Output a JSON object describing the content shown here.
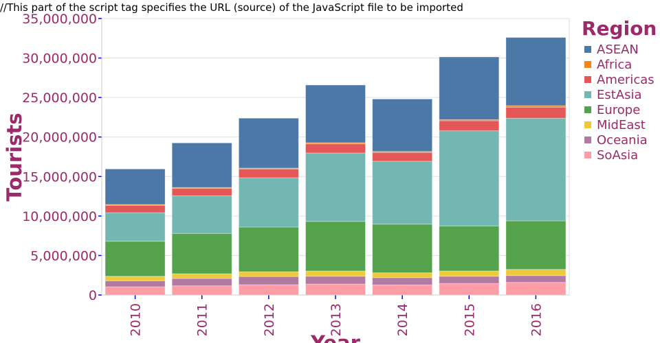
{
  "note": "//This part of the script tag specifies the URL (source) of the JavaScript file to be imported",
  "chart_data": {
    "type": "bar",
    "stacked": true,
    "title": "",
    "xlabel": "Year",
    "ylabel": "Tourists",
    "ylim": [
      0,
      35000000
    ],
    "yticks": [
      0,
      5000000,
      10000000,
      15000000,
      20000000,
      25000000,
      30000000,
      35000000
    ],
    "ytick_labels": [
      "0",
      "5,000,000",
      "10,000,000",
      "15,000,000",
      "20,000,000",
      "25,000,000",
      "30,000,000",
      "35,000,000"
    ],
    "grid": true,
    "legend_title": "Region",
    "legend_position": "right",
    "categories": [
      "2010",
      "2011",
      "2012",
      "2013",
      "2014",
      "2015",
      "2016"
    ],
    "series": [
      {
        "name": "SoAsia",
        "color": "#ff9da7",
        "values": [
          1040000,
          1160000,
          1300000,
          1390000,
          1270000,
          1450000,
          1590000
        ]
      },
      {
        "name": "Oceania",
        "color": "#b279a2",
        "values": [
          760000,
          920000,
          1040000,
          980000,
          930000,
          920000,
          870000
        ]
      },
      {
        "name": "MidEast",
        "color": "#eeca3b",
        "values": [
          570000,
          610000,
          610000,
          670000,
          610000,
          670000,
          780000
        ]
      },
      {
        "name": "Europe",
        "color": "#54a24b",
        "values": [
          4430000,
          5100000,
          5650000,
          6280000,
          6160000,
          5700000,
          6140000
        ]
      },
      {
        "name": "EstAsia",
        "color": "#72b7b2",
        "values": [
          3620000,
          4770000,
          6250000,
          8660000,
          7970000,
          12050000,
          13000000
        ]
      },
      {
        "name": "Americas",
        "color": "#e45756",
        "values": [
          930000,
          930000,
          1100000,
          1160000,
          1100000,
          1270000,
          1390000
        ]
      },
      {
        "name": "Africa",
        "color": "#f58518",
        "values": [
          110000,
          120000,
          120000,
          140000,
          140000,
          140000,
          200000
        ]
      },
      {
        "name": "ASEAN",
        "color": "#4c78a8",
        "values": [
          4490000,
          5640000,
          6310000,
          7300000,
          6630000,
          7940000,
          8630000
        ]
      }
    ],
    "legend_order": [
      "ASEAN",
      "Africa",
      "Americas",
      "EstAsia",
      "Europe",
      "MidEast",
      "Oceania",
      "SoAsia"
    ]
  }
}
